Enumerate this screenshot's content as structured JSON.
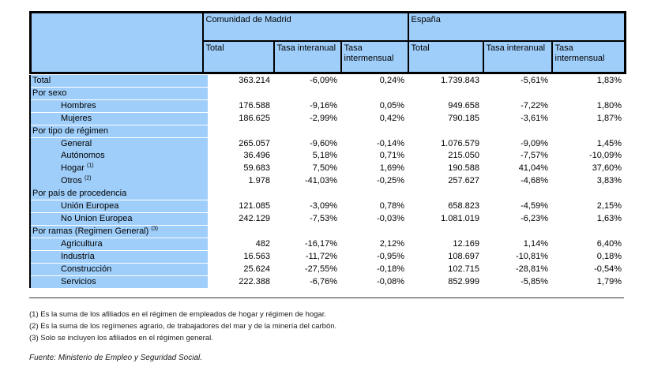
{
  "colors": {
    "header_blue": "#9FCEFA",
    "border": "#000000"
  },
  "table": {
    "region_headers": [
      "Comunidad de Madrid",
      "España"
    ],
    "sub_headers": [
      "Total",
      "Tasa interanual",
      "Tasa intermensual",
      "Total",
      "Tasa interanual",
      "Tasa intermensual"
    ],
    "rows": [
      {
        "label": "Total",
        "indent": 0,
        "sup": "",
        "values": [
          "363.214",
          "-6,09%",
          "0,24%",
          "1.739.843",
          "-5,61%",
          "1,83%"
        ]
      },
      {
        "label": "Por sexo",
        "indent": 0,
        "sup": "",
        "values": []
      },
      {
        "label": "Hombres",
        "indent": 1,
        "sup": "",
        "values": [
          "176.588",
          "-9,16%",
          "0,05%",
          "949.658",
          "-7,22%",
          "1,80%"
        ]
      },
      {
        "label": "Mujeres",
        "indent": 1,
        "sup": "",
        "values": [
          "186.625",
          "-2,99%",
          "0,42%",
          "790.185",
          "-3,61%",
          "1,87%"
        ]
      },
      {
        "label": "Por tipo de régimen",
        "indent": 0,
        "sup": "",
        "values": []
      },
      {
        "label": "General",
        "indent": 1,
        "sup": "",
        "values": [
          "265.057",
          "-9,60%",
          "-0,14%",
          "1.076.579",
          "-9,09%",
          "1,45%"
        ]
      },
      {
        "label": "Autónomos",
        "indent": 1,
        "sup": "",
        "values": [
          "36.496",
          "5,18%",
          "0,71%",
          "215.050",
          "-7,57%",
          "-10,09%"
        ]
      },
      {
        "label": "Hogar ",
        "indent": 1,
        "sup": "(1)",
        "values": [
          "59.683",
          "7,50%",
          "1,69%",
          "190.588",
          "41,04%",
          "37,60%"
        ]
      },
      {
        "label": "Otros ",
        "indent": 1,
        "sup": "(2)",
        "values": [
          "1.978",
          "-41,03%",
          "-0,25%",
          "257.627",
          "-4,68%",
          "3,83%"
        ]
      },
      {
        "label": "Por país de procedencia",
        "indent": 0,
        "sup": "",
        "values": []
      },
      {
        "label": "Unión Europea",
        "indent": 1,
        "sup": "",
        "values": [
          "121.085",
          "-3,09%",
          "0,78%",
          "658.823",
          "-4,59%",
          "2,15%"
        ]
      },
      {
        "label": "No Union Europea",
        "indent": 1,
        "sup": "",
        "values": [
          "242.129",
          "-7,53%",
          "-0,03%",
          "1.081.019",
          "-6,23%",
          "1,63%"
        ]
      },
      {
        "label": "Por ramas (Regimen General) ",
        "indent": 0,
        "sup": "(3)",
        "values": []
      },
      {
        "label": "Agricultura",
        "indent": 1,
        "sup": "",
        "values": [
          "482",
          "-16,17%",
          "2,12%",
          "12.169",
          "1,14%",
          "6,40%"
        ]
      },
      {
        "label": "Industría",
        "indent": 1,
        "sup": "",
        "values": [
          "16.563",
          "-11,72%",
          "-0,95%",
          "108.697",
          "-10,81%",
          "0,18%"
        ]
      },
      {
        "label": "Construcción",
        "indent": 1,
        "sup": "",
        "values": [
          "25.624",
          "-27,55%",
          "-0,18%",
          "102.715",
          "-28,81%",
          "-0,54%"
        ]
      },
      {
        "label": "Servicios",
        "indent": 1,
        "sup": "",
        "values": [
          "222.388",
          "-6,76%",
          "-0,08%",
          "852.999",
          "-5,85%",
          "1,79%"
        ]
      }
    ]
  },
  "footnotes": [
    "(1) Es la suma de los afiliados en el régimen de empleados de hogar y régimen de hogar.",
    "(2) Es la suma de los regímenes  agrario, de trabajadores del mar y de la minería del carbón.",
    "(3) Solo se incluyen los afiliados en el régimen general."
  ],
  "source": "Fuente: Ministerio de Empleo y Seguridad Social."
}
